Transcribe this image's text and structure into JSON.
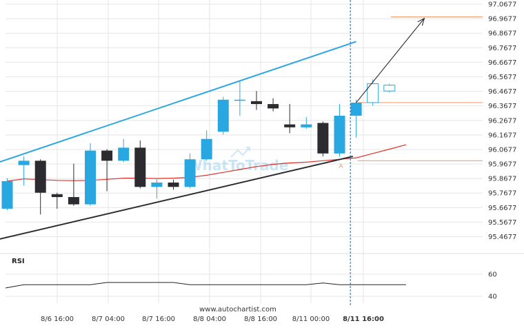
{
  "footer": {
    "source": "www.autochartist.com"
  },
  "chart_data": {
    "type": "candlestick",
    "watermark": "WhatToTrade",
    "xticks": [
      "8/6 16:00",
      "8/7 04:00",
      "8/7 16:00",
      "8/8 04:00",
      "8/8 16:00",
      "8/11 00:00",
      "8/11 16:00"
    ],
    "yticks": [
      "97.0677",
      "96.9677",
      "96.8677",
      "96.7677",
      "96.6677",
      "96.5677",
      "96.4677",
      "96.3677",
      "96.2677",
      "96.1677",
      "96.0677",
      "95.9677",
      "95.8677",
      "95.7677",
      "95.6677",
      "95.5677",
      "95.4677"
    ],
    "ylim": [
      95.35,
      97.08
    ],
    "candles": [
      {
        "o": 95.66,
        "c": 95.85,
        "h": 95.87,
        "l": 95.65
      },
      {
        "o": 95.96,
        "c": 95.99,
        "h": 96.02,
        "l": 95.82
      },
      {
        "o": 95.99,
        "c": 95.77,
        "h": 96.0,
        "l": 95.62
      },
      {
        "o": 95.76,
        "c": 95.74,
        "h": 95.77,
        "l": 95.66
      },
      {
        "o": 95.74,
        "c": 95.69,
        "h": 95.97,
        "l": 95.68
      },
      {
        "o": 95.69,
        "c": 96.06,
        "h": 96.11,
        "l": 95.68
      },
      {
        "o": 96.06,
        "c": 95.99,
        "h": 96.07,
        "l": 95.78
      },
      {
        "o": 95.99,
        "c": 96.08,
        "h": 96.14,
        "l": 95.98
      },
      {
        "o": 96.08,
        "c": 95.81,
        "h": 96.13,
        "l": 95.8
      },
      {
        "o": 95.81,
        "c": 95.84,
        "h": 95.87,
        "l": 95.73
      },
      {
        "o": 95.84,
        "c": 95.81,
        "h": 95.86,
        "l": 95.79
      },
      {
        "o": 95.81,
        "c": 96.0,
        "h": 96.04,
        "l": 95.8
      },
      {
        "o": 96.0,
        "c": 96.14,
        "h": 96.2,
        "l": 95.99
      },
      {
        "o": 96.19,
        "c": 96.41,
        "h": 96.43,
        "l": 96.17
      },
      {
        "o": 96.41,
        "c": 96.41,
        "h": 96.54,
        "l": 96.3
      },
      {
        "o": 96.4,
        "c": 96.38,
        "h": 96.47,
        "l": 96.34
      },
      {
        "o": 96.38,
        "c": 96.35,
        "h": 96.42,
        "l": 96.33
      },
      {
        "o": 96.24,
        "c": 96.22,
        "h": 96.38,
        "l": 96.18
      },
      {
        "o": 96.22,
        "c": 96.24,
        "h": 96.29,
        "l": 96.21
      },
      {
        "o": 96.25,
        "c": 96.04,
        "h": 96.26,
        "l": 96.02
      },
      {
        "o": 96.04,
        "c": 96.3,
        "h": 96.38,
        "l": 96.02
      },
      {
        "o": 96.3,
        "c": 96.39,
        "h": 96.41,
        "l": 96.15
      },
      {
        "o": 96.39,
        "c": 96.52,
        "h": 96.55,
        "l": 96.37
      },
      {
        "o": 96.47,
        "c": 96.51,
        "h": 96.52,
        "l": 96.46
      }
    ],
    "upper_trendline": {
      "from": {
        "bar": -0.5,
        "price": 95.98
      },
      "to": {
        "bar": 21.0,
        "price": 96.81
      }
    },
    "lower_trendline": {
      "from": {
        "bar": -0.5,
        "price": 95.45
      },
      "to": {
        "bar": 20.8,
        "price": 96.02
      }
    },
    "moving_average": [
      95.85,
      95.865,
      95.86,
      95.855,
      95.853,
      95.855,
      95.862,
      95.87,
      95.87,
      95.868,
      95.87,
      95.876,
      95.89,
      95.91,
      95.93,
      95.95,
      95.965,
      95.975,
      95.98,
      95.99,
      96.0,
      96.01,
      96.04,
      96.07,
      96.1
    ],
    "forecast": {
      "from": {
        "bar": 21.0,
        "price": 96.39
      },
      "to": {
        "bar": 25.1,
        "price": 96.97
      }
    },
    "levels": [
      {
        "price": 96.98,
        "from_bar": 23.0
      },
      {
        "price": 96.39,
        "from_bar": 21.0
      },
      {
        "price": 95.99,
        "from_bar": 21.0
      }
    ],
    "point_label": {
      "text": "A",
      "bar": 20.0,
      "price": 95.95
    },
    "marker_bar": 20.65,
    "rsi": {
      "label": "RSI",
      "yticks": [
        "60",
        "40"
      ],
      "ylim": [
        35,
        65
      ],
      "values": [
        47.5,
        50.5,
        50.5,
        50.5,
        50.5,
        50.5,
        52.5,
        52.5,
        52.5,
        52.5,
        52.5,
        50.5,
        50.5,
        50.5,
        50.5,
        50.5,
        50.5,
        50.5,
        50.5,
        52.0,
        50.5,
        50.5,
        50.5,
        50.5,
        50.5
      ]
    },
    "colors": {
      "bull": "#29a7e1",
      "bear": "#2b2b30",
      "upper_trendline": "#29a7e1",
      "lower_trendline": "#2b2b30",
      "moving_average": "#e0302a",
      "level": "#f0a070",
      "forecast": "#2b2b30",
      "marker": "#1f5fa8",
      "grid": "#e4e4e4",
      "watermark": "#9fd3ee"
    }
  }
}
